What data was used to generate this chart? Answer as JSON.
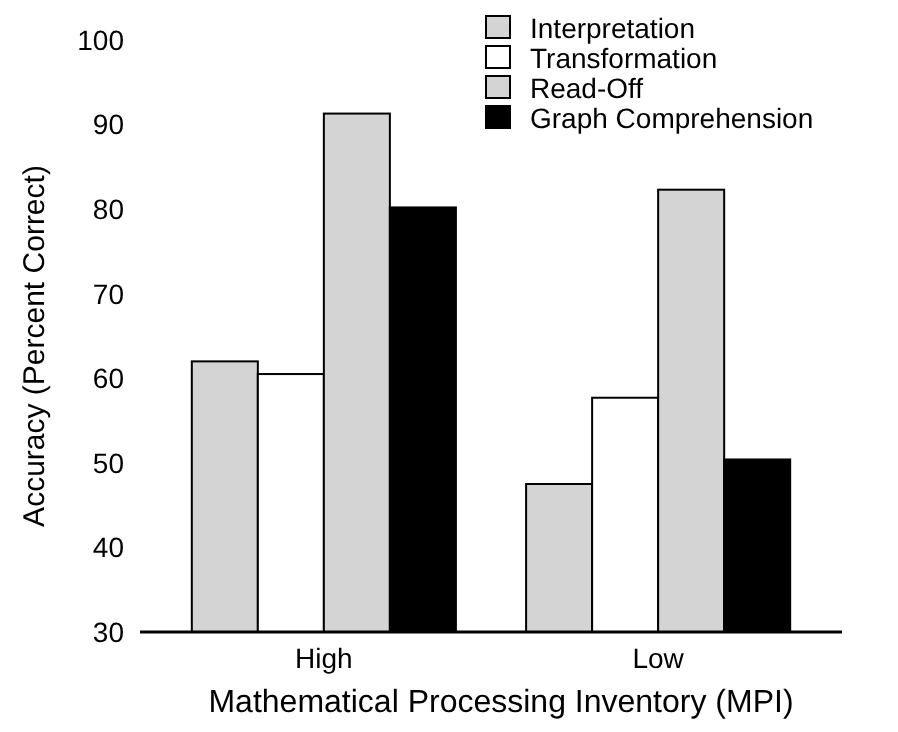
{
  "chart_data": {
    "type": "bar",
    "xlabel": "Mathematical Processing Inventory (MPI)",
    "ylabel": "Accuracy (Percent Correct)",
    "categories": [
      "High",
      "Low"
    ],
    "series": [
      {
        "name": "Interpretation",
        "color": "#d4d4d4",
        "values": [
          62,
          47.5
        ]
      },
      {
        "name": "Transformation",
        "color": "#ffffff",
        "values": [
          60.5,
          57.7
        ]
      },
      {
        "name": "Read-Off",
        "color": "#d4d4d4",
        "values": [
          91.3,
          82.3
        ]
      },
      {
        "name": "Graph Comprehension",
        "color": "#000000",
        "values": [
          80.2,
          50.4
        ]
      }
    ],
    "ylim": [
      30,
      100
    ],
    "yticks": [
      30,
      40,
      50,
      60,
      70,
      80,
      90,
      100
    ],
    "grid": false,
    "legend": "top right"
  }
}
